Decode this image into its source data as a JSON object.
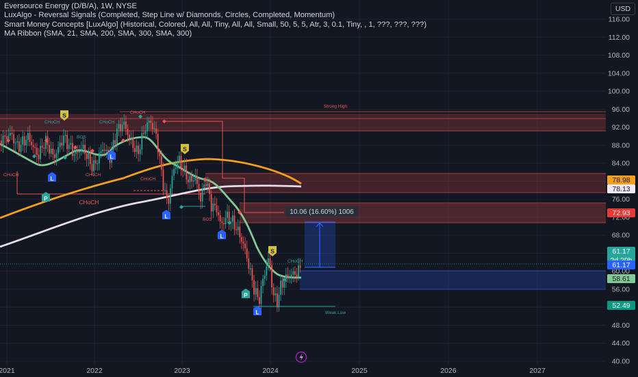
{
  "legend": {
    "title": "Eversource Energy (D/B/A), 1W, NYSE",
    "luxalgo": "LuxAlgo - Reversal Signals (Completed, Step Line w/ Diamonds, Circles, Completed, Momentum)",
    "smc": "Smart Money Concepts [LuxAlgo] (Historical, Colored, All, All, Tiny, All, All, Small, 50, 5, 5, Atr, 3, 0.1, Tiny, , 1, ???, ???, ???)",
    "ma": "MA Ribbon (SMA, 21, SMA, 200, SMA, 300, SMA, 300)"
  },
  "currency": "USD",
  "price_axis": [
    "116.00",
    "112.00",
    "108.00",
    "104.00",
    "100.00",
    "96.00",
    "92.00",
    "88.00",
    "84.00",
    "80.00",
    "76.00",
    "72.00",
    "68.00",
    "64.00",
    "60.00",
    "56.00",
    "52.00",
    "48.00",
    "44.00",
    "40.00"
  ],
  "time_axis": [
    "2021",
    "2022",
    "2023",
    "2024",
    "2025",
    "2026",
    "2027"
  ],
  "price_tags": {
    "p1": "78.98",
    "p2": "78.13",
    "p3": "72.93",
    "p4": "61.17",
    "p4_sub": "2d 20h",
    "p5": "61.17",
    "p6": "60.00",
    "p7": "58.61",
    "p8": "52.49"
  },
  "annotations": {
    "strong_high": "Strong High",
    "weak_low": "Weak Low",
    "choch_main": "CHoCH",
    "choch_small": "CHoCH",
    "bos": "BOS",
    "measure": "10.06 (16.60%) 1006"
  },
  "signals": {
    "s": "S",
    "l": "L",
    "p": "P"
  },
  "colors": {
    "bg": "#131722",
    "up": "#26a69a",
    "down": "#ef5350",
    "sma21": "#81c995",
    "sma200": "#f59f1f",
    "sma300": "#e6dce8",
    "zone_red": "#ef5350",
    "zone_blue": "#2962ff"
  }
}
